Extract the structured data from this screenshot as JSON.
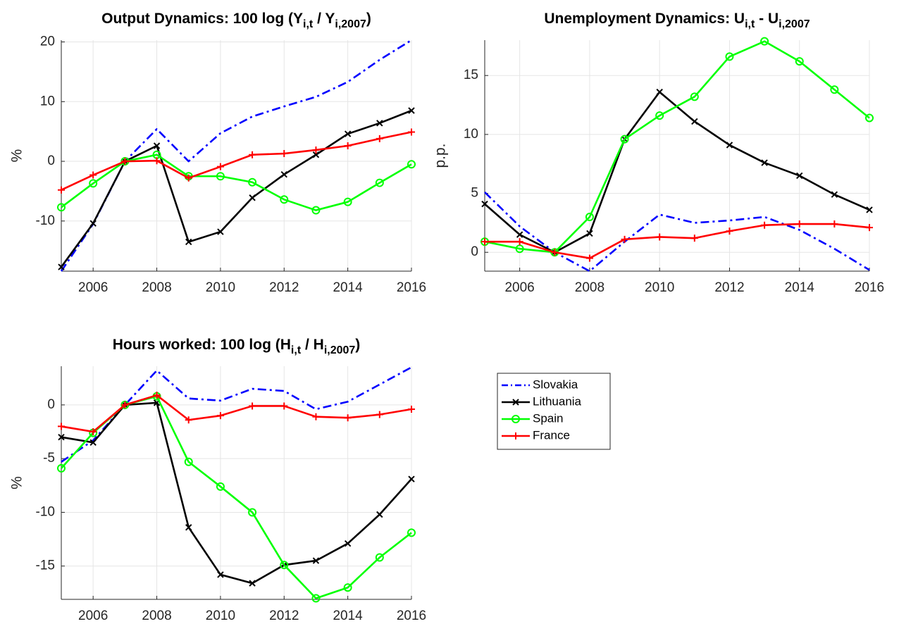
{
  "chart_data": [
    {
      "type": "line",
      "title_parts": [
        {
          "text": "Output Dynamics: 100 log (Y",
          "sub": false
        },
        {
          "text": "i,t",
          "sub": true
        },
        {
          "text": " / Y",
          "sub": false
        },
        {
          "text": "i,2007",
          "sub": true
        },
        {
          "text": ")",
          "sub": false
        }
      ],
      "ylabel": "%",
      "x": [
        2005,
        2006,
        2007,
        2008,
        2009,
        2010,
        2011,
        2012,
        2013,
        2014,
        2015,
        2016
      ],
      "xlim": [
        2005,
        2016
      ],
      "xticks": [
        2006,
        2008,
        2010,
        2012,
        2014,
        2016
      ],
      "ylim": [
        -18.4,
        20.3
      ],
      "yticks": [
        -10,
        0,
        10,
        20
      ],
      "grid": true,
      "series": [
        {
          "name": "Slovakia",
          "color": "#0000ff",
          "dash": "dashdot",
          "marker": "none",
          "values": [
            -18.4,
            -10.5,
            0,
            5.4,
            0,
            4.7,
            7.5,
            9.2,
            10.8,
            13.3,
            17,
            20.3
          ]
        },
        {
          "name": "Lithuania",
          "color": "#000000",
          "dash": "solid",
          "marker": "x",
          "values": [
            -17.7,
            -10.4,
            0,
            2.6,
            -13.5,
            -11.8,
            -6.1,
            -2.2,
            1.1,
            4.6,
            6.4,
            8.5
          ]
        },
        {
          "name": "Spain",
          "color": "#00ff00",
          "dash": "solid",
          "marker": "o",
          "values": [
            -7.7,
            -3.7,
            0,
            1.1,
            -2.5,
            -2.5,
            -3.5,
            -6.4,
            -8.2,
            -6.8,
            -3.6,
            -0.5
          ]
        },
        {
          "name": "France",
          "color": "#ff0000",
          "dash": "solid",
          "marker": "+",
          "values": [
            -4.8,
            -2.3,
            0,
            0.1,
            -2.8,
            -0.9,
            1.1,
            1.3,
            1.9,
            2.6,
            3.8,
            4.9
          ]
        }
      ]
    },
    {
      "type": "line",
      "title_parts": [
        {
          "text": "Unemployment Dynamics: U",
          "sub": false
        },
        {
          "text": "i,t",
          "sub": true
        },
        {
          "text": " - U",
          "sub": false
        },
        {
          "text": "i,2007",
          "sub": true
        }
      ],
      "ylabel": "p.p.",
      "x": [
        2005,
        2006,
        2007,
        2008,
        2009,
        2010,
        2011,
        2012,
        2013,
        2014,
        2015,
        2016
      ],
      "xlim": [
        2005,
        2016
      ],
      "xticks": [
        2006,
        2008,
        2010,
        2012,
        2014,
        2016
      ],
      "ylim": [
        -1.6,
        18
      ],
      "yticks": [
        0,
        5,
        10,
        15
      ],
      "grid": true,
      "series": [
        {
          "color": "#0000ff",
          "dash": "dashdot",
          "marker": "none",
          "values": [
            5.1,
            2.2,
            0,
            -1.6,
            0.9,
            3.2,
            2.5,
            2.7,
            3.0,
            1.9,
            0.3,
            -1.5
          ]
        },
        {
          "color": "#000000",
          "dash": "solid",
          "marker": "x",
          "values": [
            4.1,
            1.5,
            0,
            1.6,
            9.6,
            13.6,
            11.1,
            9.1,
            7.6,
            6.5,
            4.9,
            3.6
          ]
        },
        {
          "color": "#00ff00",
          "dash": "solid",
          "marker": "o",
          "values": [
            0.9,
            0.3,
            0,
            3.0,
            9.6,
            11.6,
            13.2,
            16.6,
            17.9,
            16.2,
            13.8,
            11.4
          ]
        },
        {
          "color": "#ff0000",
          "dash": "solid",
          "marker": "+",
          "values": [
            0.9,
            0.9,
            0,
            -0.5,
            1.1,
            1.3,
            1.2,
            1.8,
            2.3,
            2.4,
            2.4,
            2.1
          ]
        }
      ]
    },
    {
      "type": "line",
      "title_parts": [
        {
          "text": "Hours worked: 100 log (H",
          "sub": false
        },
        {
          "text": "i,t",
          "sub": true
        },
        {
          "text": " / H",
          "sub": false
        },
        {
          "text": "i,2007",
          "sub": true
        },
        {
          "text": ")",
          "sub": false
        }
      ],
      "ylabel": "%",
      "x": [
        2005,
        2006,
        2007,
        2008,
        2009,
        2010,
        2011,
        2012,
        2013,
        2014,
        2015,
        2016
      ],
      "xlim": [
        2005,
        2016
      ],
      "xticks": [
        2006,
        2008,
        2010,
        2012,
        2014,
        2016
      ],
      "ylim": [
        -18.1,
        3.6
      ],
      "yticks": [
        -15,
        -10,
        -5,
        0
      ],
      "grid": true,
      "series": [
        {
          "color": "#0000ff",
          "dash": "dashdot",
          "marker": "none",
          "values": [
            -5.3,
            -3.3,
            0,
            3.2,
            0.6,
            0.4,
            1.5,
            1.3,
            -0.4,
            0.3,
            1.9,
            3.5
          ]
        },
        {
          "color": "#000000",
          "dash": "solid",
          "marker": "x",
          "values": [
            -3.0,
            -3.5,
            0,
            0.2,
            -11.4,
            -15.8,
            -16.6,
            -14.9,
            -14.5,
            -12.9,
            -10.2,
            -6.9
          ]
        },
        {
          "color": "#00ff00",
          "dash": "solid",
          "marker": "o",
          "values": [
            -5.9,
            -2.6,
            0,
            0.8,
            -5.3,
            -7.6,
            -10.0,
            -14.9,
            -18.0,
            -17.0,
            -14.2,
            -11.9
          ]
        },
        {
          "color": "#ff0000",
          "dash": "solid",
          "marker": "+",
          "values": [
            -2.0,
            -2.5,
            0,
            0.9,
            -1.4,
            -1.0,
            -0.1,
            -0.1,
            -1.1,
            -1.2,
            -0.9,
            -0.4
          ]
        }
      ]
    }
  ]
}
